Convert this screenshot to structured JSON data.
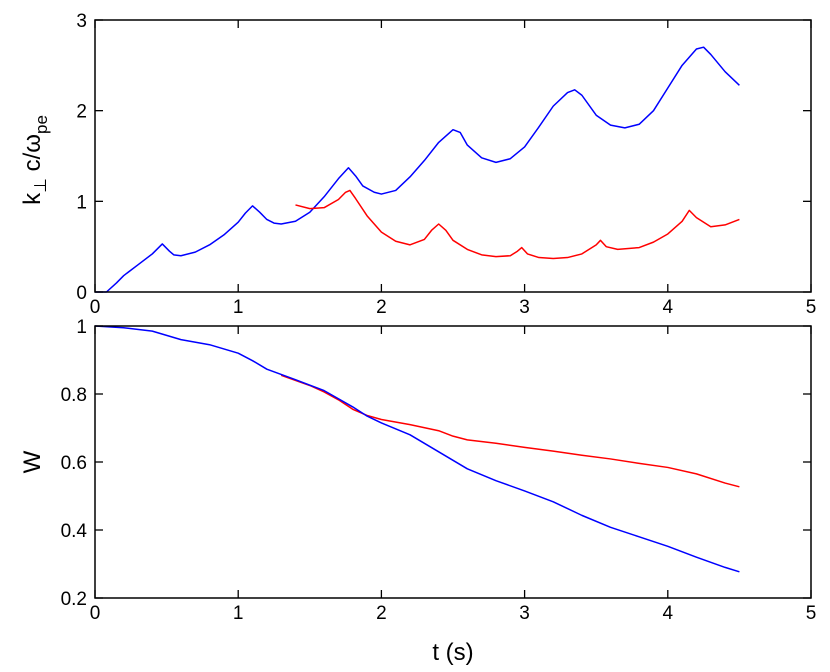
{
  "chart_data": [
    {
      "type": "line",
      "xlim": [
        0,
        5
      ],
      "ylim": [
        0,
        3
      ],
      "xticks": [
        "0",
        "1",
        "2",
        "3",
        "4",
        "5"
      ],
      "yticks": [
        "0",
        "1",
        "2",
        "3"
      ],
      "xlabel": "",
      "ylabel": {
        "main": "k",
        "sub_perp": "⊥",
        "mid": " c/ω",
        "sub_pe": "pe"
      },
      "grid": false,
      "legend": "none",
      "series": [
        {
          "color": "#0000ff",
          "x": [
            0,
            0.08,
            0.15,
            0.2,
            0.3,
            0.4,
            0.47,
            0.52,
            0.55,
            0.6,
            0.7,
            0.8,
            0.9,
            1.0,
            1.05,
            1.1,
            1.15,
            1.2,
            1.25,
            1.3,
            1.4,
            1.5,
            1.6,
            1.7,
            1.77,
            1.82,
            1.87,
            1.95,
            2.0,
            2.1,
            2.2,
            2.3,
            2.4,
            2.5,
            2.55,
            2.6,
            2.7,
            2.8,
            2.9,
            3.0,
            3.1,
            3.2,
            3.3,
            3.35,
            3.4,
            3.5,
            3.6,
            3.7,
            3.8,
            3.9,
            4.0,
            4.1,
            4.2,
            4.25,
            4.3,
            4.4,
            4.5
          ],
          "y": [
            0,
            0,
            0.1,
            0.18,
            0.3,
            0.42,
            0.53,
            0.45,
            0.41,
            0.4,
            0.44,
            0.52,
            0.63,
            0.77,
            0.87,
            0.95,
            0.88,
            0.8,
            0.76,
            0.75,
            0.78,
            0.88,
            1.05,
            1.25,
            1.37,
            1.28,
            1.17,
            1.1,
            1.08,
            1.12,
            1.27,
            1.45,
            1.65,
            1.79,
            1.76,
            1.62,
            1.48,
            1.43,
            1.47,
            1.6,
            1.82,
            2.05,
            2.2,
            2.23,
            2.17,
            1.95,
            1.84,
            1.81,
            1.85,
            2.0,
            2.25,
            2.5,
            2.68,
            2.7,
            2.62,
            2.43,
            2.28
          ]
        },
        {
          "color": "#ff0000",
          "x": [
            1.4,
            1.5,
            1.6,
            1.7,
            1.75,
            1.78,
            1.82,
            1.9,
            2.0,
            2.1,
            2.2,
            2.3,
            2.35,
            2.4,
            2.45,
            2.5,
            2.6,
            2.7,
            2.8,
            2.9,
            2.95,
            2.98,
            3.02,
            3.1,
            3.2,
            3.3,
            3.4,
            3.5,
            3.53,
            3.57,
            3.65,
            3.8,
            3.9,
            4.0,
            4.1,
            4.15,
            4.2,
            4.3,
            4.4,
            4.5
          ],
          "y": [
            0.96,
            0.92,
            0.93,
            1.02,
            1.1,
            1.12,
            1.03,
            0.84,
            0.66,
            0.56,
            0.52,
            0.58,
            0.68,
            0.75,
            0.68,
            0.57,
            0.47,
            0.41,
            0.39,
            0.4,
            0.45,
            0.49,
            0.42,
            0.38,
            0.37,
            0.38,
            0.42,
            0.52,
            0.57,
            0.5,
            0.47,
            0.49,
            0.55,
            0.64,
            0.78,
            0.9,
            0.82,
            0.72,
            0.74,
            0.8
          ]
        }
      ]
    },
    {
      "type": "line",
      "xlim": [
        0,
        5
      ],
      "ylim": [
        0.2,
        1.0
      ],
      "xticks": [
        "0",
        "1",
        "2",
        "3",
        "4",
        "5"
      ],
      "yticks": [
        "0.2",
        "0.4",
        "0.6",
        "0.8",
        "1"
      ],
      "xlabel": "t (s)",
      "ylabel": "W",
      "grid": false,
      "legend": "none",
      "series": [
        {
          "color": "#ff0000",
          "x": [
            1.3,
            1.4,
            1.5,
            1.6,
            1.7,
            1.8,
            1.9,
            2.0,
            2.2,
            2.4,
            2.5,
            2.6,
            2.8,
            3.0,
            3.2,
            3.4,
            3.6,
            3.8,
            4.0,
            4.2,
            4.4,
            4.5
          ],
          "y": [
            0.855,
            0.84,
            0.825,
            0.806,
            0.783,
            0.755,
            0.737,
            0.725,
            0.71,
            0.692,
            0.676,
            0.665,
            0.655,
            0.643,
            0.632,
            0.62,
            0.609,
            0.596,
            0.584,
            0.565,
            0.538,
            0.527
          ]
        },
        {
          "color": "#0000ff",
          "x": [
            0,
            0.2,
            0.4,
            0.6,
            0.8,
            1.0,
            1.1,
            1.2,
            1.4,
            1.6,
            1.8,
            1.9,
            2.0,
            2.2,
            2.4,
            2.6,
            2.8,
            3.0,
            3.2,
            3.4,
            3.6,
            3.8,
            4.0,
            4.2,
            4.4,
            4.5
          ],
          "y": [
            1.0,
            0.995,
            0.985,
            0.96,
            0.945,
            0.92,
            0.898,
            0.873,
            0.842,
            0.81,
            0.762,
            0.735,
            0.715,
            0.68,
            0.63,
            0.58,
            0.545,
            0.515,
            0.483,
            0.443,
            0.408,
            0.38,
            0.352,
            0.32,
            0.29,
            0.277
          ]
        }
      ]
    }
  ]
}
